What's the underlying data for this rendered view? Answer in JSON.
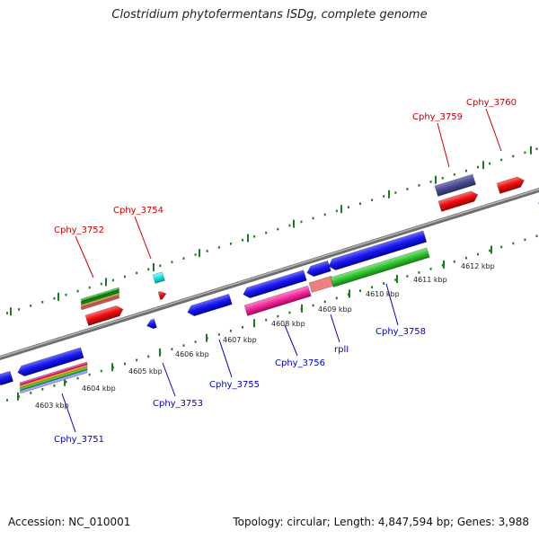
{
  "title": "Clostridium phytofermentans ISDg, complete genome",
  "footer": {
    "accession": "Accession: NC_010001",
    "summary": "Topology: circular; Length: 4,847,594 bp; Genes: 3,988"
  },
  "colors": {
    "backbone": "#8a8a8a",
    "tick": "#1e7a1e",
    "forward_label": "#cc0000",
    "reverse_label": "#0000cc",
    "cds_reverse": "#1010e0",
    "cds_forward": "#ee1010",
    "trna": "#10e0e0",
    "rrna_pink": "#ee2a9a",
    "rrna_salmon": "#f08080",
    "green": "#30c030",
    "purple": "#4a4a90"
  },
  "scale_labels": [
    "4603 kbp",
    "4604 kbp",
    "4605 kbp",
    "4606 kbp",
    "4607 kbp",
    "4608 kbp",
    "4609 kbp",
    "4610 kbp",
    "4611 kbp",
    "4612 kbp"
  ],
  "gene_labels_forward": [
    "Cphy_3752",
    "Cphy_3754",
    "Cphy_3759",
    "Cphy_3760"
  ],
  "gene_labels_reverse": [
    "Cphy_3751",
    "Cphy_3753",
    "Cphy_3755",
    "Cphy_3756",
    "rplI",
    "Cphy_3758"
  ]
}
